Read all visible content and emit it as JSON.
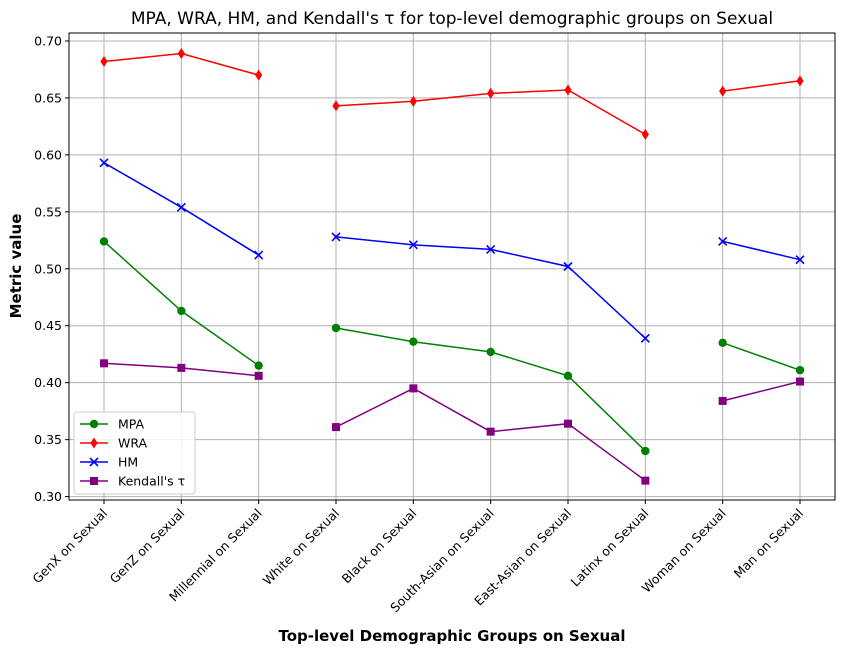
{
  "chart_data": {
    "type": "line",
    "title": "MPA, WRA, HM, and Kendall's τ for top-level demographic groups on Sexual",
    "xlabel": "Top-level Demographic Groups on Sexual",
    "ylabel": "Metric value",
    "ylim": [
      0.297,
      0.707
    ],
    "yticks": [
      "0.30",
      "0.35",
      "0.40",
      "0.45",
      "0.50",
      "0.55",
      "0.60",
      "0.65",
      "0.70"
    ],
    "categories": [
      "GenX on Sexual",
      "GenZ on Sexual",
      "Millennial on Sexual",
      "White on Sexual",
      "Black on Sexual",
      "South-Asian on Sexual",
      "East-Asian on Sexual",
      "Latinx on Sexual",
      "Woman on Sexual",
      "Man on Sexual"
    ],
    "groups": [
      [
        0,
        1,
        2
      ],
      [
        3,
        4,
        5,
        6,
        7
      ],
      [
        8,
        9
      ]
    ],
    "grid": true,
    "legend_position": "lower-left",
    "series": [
      {
        "name": "MPA",
        "color": "#008000",
        "marker": "circle",
        "values": [
          0.524,
          0.463,
          0.415,
          0.448,
          0.436,
          0.427,
          0.406,
          0.34,
          0.435,
          0.411
        ]
      },
      {
        "name": "WRA",
        "color": "#ff0000",
        "marker": "diamond",
        "values": [
          0.682,
          0.689,
          0.67,
          0.643,
          0.647,
          0.654,
          0.657,
          0.618,
          0.656,
          0.665
        ]
      },
      {
        "name": "HM",
        "color": "#0000ff",
        "marker": "x",
        "values": [
          0.593,
          0.554,
          0.512,
          0.528,
          0.521,
          0.517,
          0.502,
          0.439,
          0.524,
          0.508
        ]
      },
      {
        "name": "Kendall's τ",
        "color": "#800080",
        "marker": "square",
        "values": [
          0.417,
          0.413,
          0.406,
          0.361,
          0.395,
          0.357,
          0.364,
          0.314,
          0.384,
          0.401
        ]
      }
    ]
  }
}
